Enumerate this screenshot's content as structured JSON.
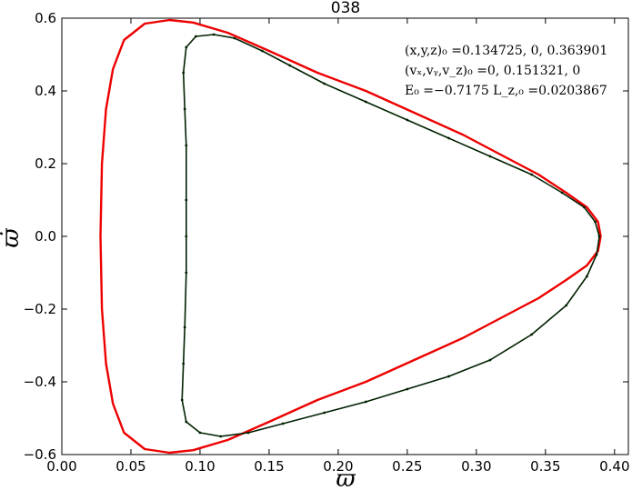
{
  "chart_data": {
    "type": "scatter",
    "title": "038",
    "xlabel": "ϖ",
    "ylabel": "ϖ̇",
    "xlim": [
      0.0,
      0.41
    ],
    "ylim": [
      -0.6,
      0.6
    ],
    "xticks": [
      "0.00",
      "0.05",
      "0.10",
      "0.15",
      "0.20",
      "0.25",
      "0.30",
      "0.35",
      "0.40"
    ],
    "yticks": [
      "0.6",
      "0.4",
      "0.2",
      "0.0",
      "−0.2",
      "−0.4",
      "−0.6"
    ],
    "grid": false,
    "annotations": [
      "(x,y,z)₀ =0.134725, 0, 0.363901",
      "(vₓ,vᵧ,v_z)₀ =0, 0.151321, 0",
      "E₀ =−0.7175  L_z,₀ =0.0203867"
    ],
    "series": [
      {
        "color": "#ee0000",
        "style": "line",
        "points": [
          [
            0.39,
            0.0
          ],
          [
            0.388,
            0.04
          ],
          [
            0.38,
            0.08
          ],
          [
            0.365,
            0.12
          ],
          [
            0.345,
            0.17
          ],
          [
            0.32,
            0.22
          ],
          [
            0.29,
            0.28
          ],
          [
            0.255,
            0.34
          ],
          [
            0.22,
            0.4
          ],
          [
            0.185,
            0.45
          ],
          [
            0.15,
            0.51
          ],
          [
            0.12,
            0.56
          ],
          [
            0.095,
            0.588
          ],
          [
            0.078,
            0.595
          ],
          [
            0.06,
            0.585
          ],
          [
            0.045,
            0.54
          ],
          [
            0.037,
            0.46
          ],
          [
            0.032,
            0.35
          ],
          [
            0.029,
            0.2
          ],
          [
            0.028,
            0.0
          ],
          [
            0.029,
            -0.2
          ],
          [
            0.032,
            -0.35
          ],
          [
            0.037,
            -0.46
          ],
          [
            0.045,
            -0.54
          ],
          [
            0.06,
            -0.585
          ],
          [
            0.078,
            -0.595
          ],
          [
            0.095,
            -0.588
          ],
          [
            0.12,
            -0.56
          ],
          [
            0.15,
            -0.51
          ],
          [
            0.185,
            -0.45
          ],
          [
            0.22,
            -0.4
          ],
          [
            0.255,
            -0.34
          ],
          [
            0.29,
            -0.28
          ],
          [
            0.32,
            -0.22
          ],
          [
            0.345,
            -0.17
          ],
          [
            0.365,
            -0.12
          ],
          [
            0.38,
            -0.08
          ],
          [
            0.388,
            -0.04
          ],
          [
            0.39,
            0.0
          ]
        ]
      },
      {
        "color": "#002000",
        "style": "points",
        "points": [
          [
            0.389,
            0.0
          ],
          [
            0.386,
            0.04
          ],
          [
            0.378,
            0.08
          ],
          [
            0.362,
            0.12
          ],
          [
            0.34,
            0.17
          ],
          [
            0.31,
            0.22
          ],
          [
            0.28,
            0.27
          ],
          [
            0.25,
            0.32
          ],
          [
            0.22,
            0.37
          ],
          [
            0.19,
            0.42
          ],
          [
            0.165,
            0.47
          ],
          [
            0.145,
            0.51
          ],
          [
            0.125,
            0.545
          ],
          [
            0.11,
            0.555
          ],
          [
            0.097,
            0.55
          ],
          [
            0.09,
            0.52
          ],
          [
            0.088,
            0.45
          ],
          [
            0.089,
            0.35
          ],
          [
            0.09,
            0.25
          ],
          [
            0.09,
            0.1
          ],
          [
            0.09,
            0.0
          ],
          [
            0.09,
            -0.1
          ],
          [
            0.089,
            -0.25
          ],
          [
            0.088,
            -0.35
          ],
          [
            0.087,
            -0.45
          ],
          [
            0.09,
            -0.51
          ],
          [
            0.1,
            -0.54
          ],
          [
            0.115,
            -0.55
          ],
          [
            0.135,
            -0.54
          ],
          [
            0.16,
            -0.515
          ],
          [
            0.19,
            -0.485
          ],
          [
            0.22,
            -0.455
          ],
          [
            0.25,
            -0.42
          ],
          [
            0.28,
            -0.385
          ],
          [
            0.31,
            -0.34
          ],
          [
            0.34,
            -0.27
          ],
          [
            0.365,
            -0.19
          ],
          [
            0.38,
            -0.11
          ],
          [
            0.387,
            -0.05
          ],
          [
            0.389,
            0.0
          ]
        ]
      }
    ]
  }
}
